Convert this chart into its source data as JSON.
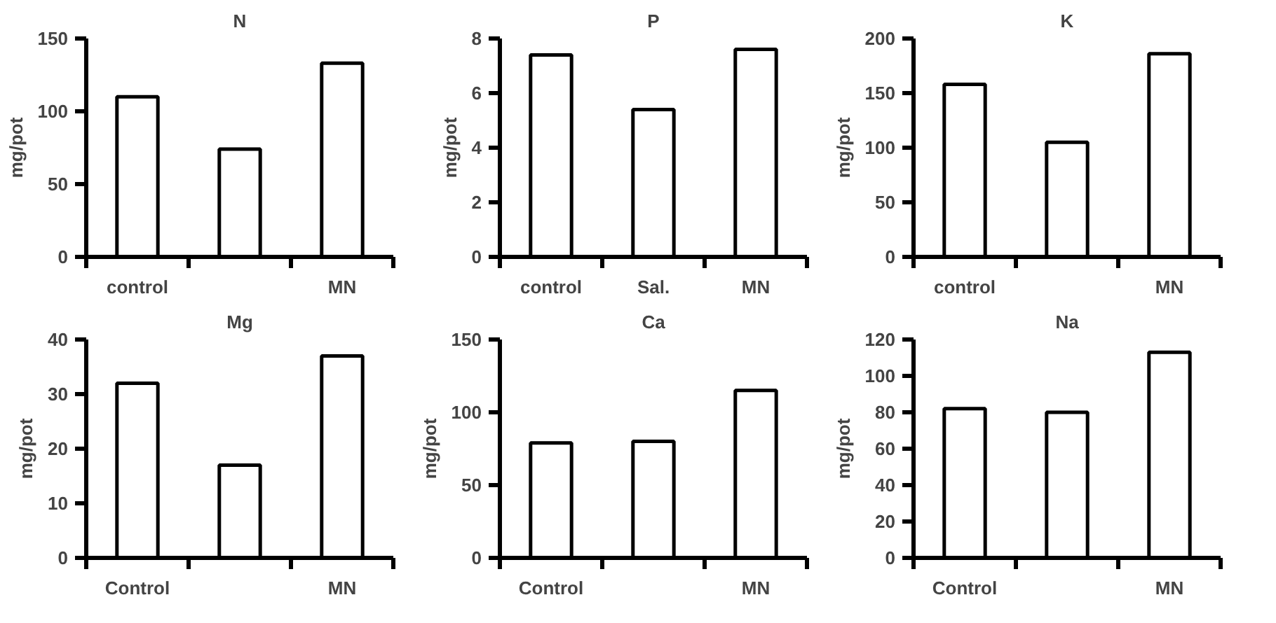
{
  "chart_data": [
    {
      "type": "bar",
      "title": "N",
      "ylabel": "mg/pot",
      "categories": [
        "control",
        null,
        "MN"
      ],
      "values": [
        110,
        74,
        133
      ],
      "color": "#ffffff",
      "ylim": [
        0,
        150
      ],
      "yticks": [
        0,
        50,
        100,
        150
      ],
      "grid": false
    },
    {
      "type": "bar",
      "title": "P",
      "ylabel": "mg/pot",
      "categories": [
        "control",
        "Sal.",
        "MN"
      ],
      "values": [
        7.4,
        5.4,
        7.6
      ],
      "color": "#ffffff",
      "ylim": [
        0,
        8
      ],
      "yticks": [
        0,
        2,
        4,
        6,
        8
      ],
      "grid": false
    },
    {
      "type": "bar",
      "title": "K",
      "ylabel": "mg/pot",
      "categories": [
        "control",
        null,
        "MN"
      ],
      "values": [
        158,
        105,
        186
      ],
      "color": "#ffffff",
      "ylim": [
        0,
        200
      ],
      "yticks": [
        0,
        50,
        100,
        150,
        200
      ],
      "grid": false
    },
    {
      "type": "bar",
      "title": "Mg",
      "ylabel": "mg/pot",
      "categories": [
        "Control",
        null,
        "MN"
      ],
      "values": [
        32,
        17,
        37
      ],
      "color": "#ffffff",
      "ylim": [
        0,
        40
      ],
      "yticks": [
        0,
        10,
        20,
        30,
        40
      ],
      "grid": false
    },
    {
      "type": "bar",
      "title": "Ca",
      "ylabel": "mg/pot",
      "categories": [
        "Control",
        null,
        "MN"
      ],
      "values": [
        79,
        80,
        115
      ],
      "color": "#ffffff",
      "ylim": [
        0,
        150
      ],
      "yticks": [
        0,
        50,
        100,
        150
      ],
      "grid": false
    },
    {
      "type": "bar",
      "title": "Na",
      "ylabel": "mg/pot",
      "categories": [
        "Control",
        null,
        "MN"
      ],
      "values": [
        82,
        80,
        113
      ],
      "color": "#ffffff",
      "ylim": [
        0,
        120
      ],
      "yticks": [
        0,
        20,
        40,
        60,
        80,
        100,
        120
      ],
      "grid": false
    }
  ]
}
